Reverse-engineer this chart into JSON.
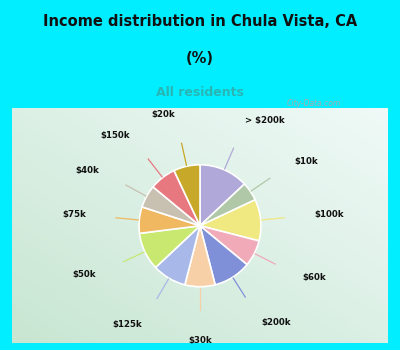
{
  "title_line1": "Income distribution in Chula Vista, CA",
  "title_line2": "(%)",
  "subtitle": "All residents",
  "title_color": "#111111",
  "subtitle_color": "#2ab5b5",
  "bg_cyan": "#00eeff",
  "bg_pie_box_left": "#c8e8d0",
  "bg_pie_box_right": "#e8f8f8",
  "watermark": "City-Data.com",
  "labels": [
    "> $200k",
    "$10k",
    "$100k",
    "$60k",
    "$200k",
    "$30k",
    "$125k",
    "$50k",
    "$75k",
    "$40k",
    "$150k",
    "$20k"
  ],
  "values": [
    13,
    5,
    11,
    7,
    10,
    8,
    9,
    10,
    7,
    6,
    7,
    7
  ],
  "colors": [
    "#b0a8d8",
    "#b0c8a8",
    "#f0e880",
    "#f0aab8",
    "#8090d8",
    "#f8d0a8",
    "#a8b8e8",
    "#c8e870",
    "#f0b860",
    "#c8c0b0",
    "#e87880",
    "#c8a828"
  ],
  "line_colors": [
    "#b0a8d8",
    "#b0c8a8",
    "#f0e880",
    "#f0aab8",
    "#8090d8",
    "#f8d0a8",
    "#a8b8e8",
    "#c8e870",
    "#f0b860",
    "#c8c0b0",
    "#e87880",
    "#c8a828"
  ],
  "figsize": [
    4.0,
    3.5
  ],
  "dpi": 100
}
